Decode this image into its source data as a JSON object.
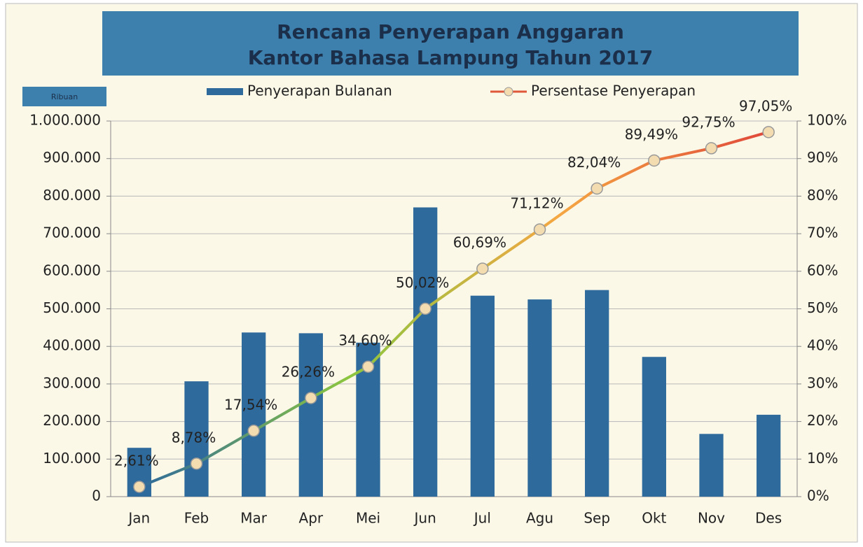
{
  "chart_data": {
    "type": "bar_line",
    "title": "Rencana Penyerapan Anggaran",
    "subtitle": "Kantor Bahasa Lampung Tahun 2017",
    "y_axis_label": "Ribuan",
    "categories": [
      "Jan",
      "Feb",
      "Mar",
      "Apr",
      "Mei",
      "Jun",
      "Jul",
      "Agu",
      "Sep",
      "Okt",
      "Nov",
      "Des"
    ],
    "series": [
      {
        "name": "Penyerapan Bulanan",
        "type": "bar",
        "color": "#2f6a9c",
        "values": [
          130000,
          307000,
          437000,
          435000,
          410000,
          770000,
          535000,
          525000,
          550000,
          372000,
          167000,
          218000
        ]
      },
      {
        "name": "Persentase Penyerapan",
        "type": "line",
        "axis": "y2",
        "color": "#e0583a",
        "colors": [
          "#2f6a9c",
          "#8cc63f",
          "#f5a742",
          "#e0483a"
        ],
        "marker_color": "#f3dcb0",
        "values": [
          2.61,
          8.78,
          17.54,
          26.26,
          34.6,
          50.02,
          60.69,
          71.12,
          82.04,
          89.49,
          92.75,
          97.05
        ],
        "value_labels": [
          "2,61%",
          "8,78%",
          "17,54%",
          "26,26%",
          "34,60%",
          "50,02%",
          "60,69%",
          "71,12%",
          "82,04%",
          "89,49%",
          "92,75%",
          "97,05%"
        ]
      }
    ],
    "ylim": [
      0,
      1000000
    ],
    "yticks": [
      0,
      {
        "value": 100000,
        "label": "100.000"
      },
      {
        "value": 200000,
        "label": "200.000"
      },
      {
        "value": 300000,
        "label": "300.000"
      },
      {
        "value": 400000,
        "label": "400.000"
      },
      {
        "value": 500000,
        "label": "500.000"
      },
      {
        "value": 600000,
        "label": "600.000"
      },
      {
        "value": 700000,
        "label": "700.000"
      },
      {
        "value": 800000,
        "label": "800.000"
      },
      {
        "value": 900000,
        "label": "900.000"
      },
      {
        "value": 1000000,
        "label": "1.000.000"
      }
    ],
    "y2lim": [
      0,
      100
    ],
    "y2ticks": [
      {
        "value": 0,
        "label": "0%"
      },
      {
        "value": 10,
        "label": "10%"
      },
      {
        "value": 20,
        "label": "20%"
      },
      {
        "value": 30,
        "label": "30%"
      },
      {
        "value": 40,
        "label": "40%"
      },
      {
        "value": 50,
        "label": "50%"
      },
      {
        "value": 60,
        "label": "60%"
      },
      {
        "value": 70,
        "label": "70%"
      },
      {
        "value": 80,
        "label": "80%"
      },
      {
        "value": 90,
        "label": "90%"
      },
      {
        "value": 100,
        "label": "100%"
      }
    ],
    "grid": true,
    "legend": "top"
  }
}
